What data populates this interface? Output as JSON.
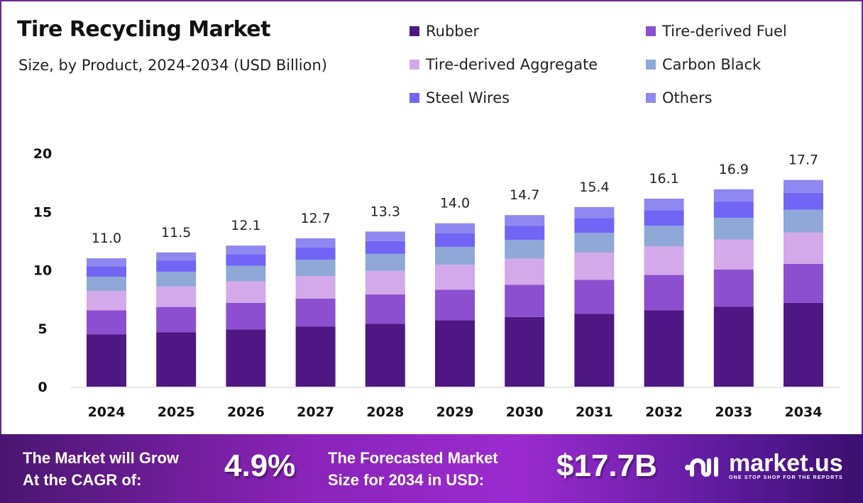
{
  "chart_data": {
    "type": "bar",
    "stacked": true,
    "title": "Tire Recycling Market",
    "subtitle": "Size, by Product, 2024-2034 (USD Billion)",
    "categories": [
      "2024",
      "2025",
      "2026",
      "2027",
      "2028",
      "2029",
      "2030",
      "2031",
      "2032",
      "2033",
      "2034"
    ],
    "totals": [
      "11.0",
      "11.5",
      "12.1",
      "12.7",
      "13.3",
      "14.0",
      "14.7",
      "15.4",
      "16.1",
      "16.9",
      "17.7"
    ],
    "series": [
      {
        "name": "Rubber",
        "color": "#4f1783",
        "values": [
          4.47,
          4.67,
          4.91,
          5.16,
          5.4,
          5.68,
          5.97,
          6.25,
          6.54,
          6.86,
          7.19
        ]
      },
      {
        "name": "Tire-derived Fuel",
        "color": "#8b4fcf",
        "values": [
          2.07,
          2.16,
          2.27,
          2.39,
          2.5,
          2.63,
          2.76,
          2.9,
          3.03,
          3.18,
          3.33
        ]
      },
      {
        "name": "Tire-derived Aggregate",
        "color": "#d3a9ea",
        "values": [
          1.67,
          1.75,
          1.84,
          1.93,
          2.02,
          2.13,
          2.23,
          2.34,
          2.45,
          2.57,
          2.69
        ]
      },
      {
        "name": "Carbon Black",
        "color": "#8fa8d8",
        "values": [
          1.21,
          1.27,
          1.33,
          1.4,
          1.46,
          1.54,
          1.62,
          1.69,
          1.77,
          1.86,
          1.95
        ]
      },
      {
        "name": "Steel Wires",
        "color": "#7265f5",
        "values": [
          0.9,
          0.94,
          0.99,
          1.04,
          1.09,
          1.15,
          1.21,
          1.26,
          1.32,
          1.39,
          1.45
        ]
      },
      {
        "name": "Others",
        "color": "#8f88f0",
        "values": [
          0.68,
          0.71,
          0.75,
          0.79,
          0.82,
          0.87,
          0.91,
          0.95,
          1.0,
          1.05,
          1.1
        ]
      }
    ],
    "yticks": [
      "0",
      "5",
      "10",
      "15",
      "20"
    ],
    "ylim": [
      0,
      20
    ],
    "grid": false,
    "legend_position": "top-right"
  },
  "footer": {
    "cagr_text_1": "The Market will Grow",
    "cagr_text_2": "At the CAGR of:",
    "cagr_value": "4.9%",
    "forecast_text_1": "The Forecasted Market",
    "forecast_text_2": "Size for 2034 in USD:",
    "forecast_value": "$17.7B",
    "brand": "market.us",
    "tagline": "ONE STOP SHOP FOR THE REPORTS"
  }
}
